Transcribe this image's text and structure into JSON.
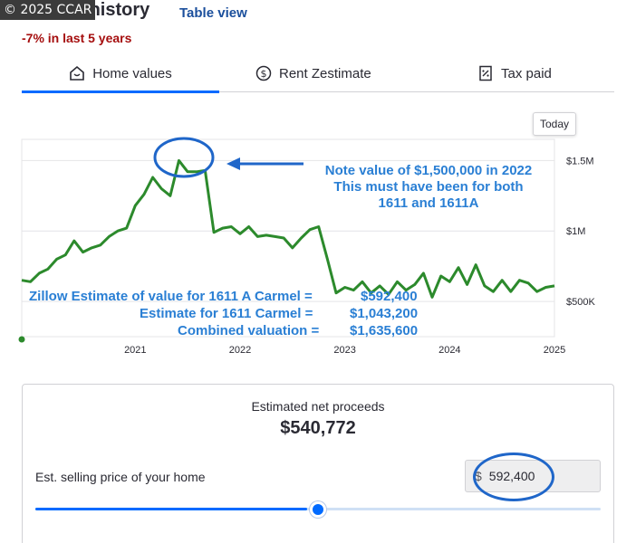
{
  "watermark": "© 2025 CCAR",
  "header": {
    "title": "ate",
    "title_mark": "®",
    "title_tail": " history",
    "table_view": "Table view",
    "change": "-7% in last 5 years"
  },
  "tabs": [
    {
      "label": "Home values",
      "icon": "house-icon",
      "active": true
    },
    {
      "label": "Rent Zestimate",
      "icon": "dollar-circle-icon",
      "active": false
    },
    {
      "label": "Tax paid",
      "icon": "receipt-icon",
      "active": false
    }
  ],
  "today_button": "Today",
  "chart_data": {
    "type": "line",
    "series": [
      {
        "color": "#2c8a2c",
        "points": [
          [
            "2020-06",
            650000
          ],
          [
            "2020-07",
            640000
          ],
          [
            "2020-08",
            700000
          ],
          [
            "2020-09",
            730000
          ],
          [
            "2020-10",
            800000
          ],
          [
            "2020-11",
            830000
          ],
          [
            "2020-12",
            930000
          ],
          [
            "2021-01",
            850000
          ],
          [
            "2021-02",
            880000
          ],
          [
            "2021-03",
            900000
          ],
          [
            "2021-04",
            960000
          ],
          [
            "2021-05",
            1000000
          ],
          [
            "2021-06",
            1020000
          ],
          [
            "2021-07",
            1180000
          ],
          [
            "2021-08",
            1260000
          ],
          [
            "2021-09",
            1380000
          ],
          [
            "2021-10",
            1300000
          ],
          [
            "2021-11",
            1250000
          ],
          [
            "2021-12",
            1500000
          ],
          [
            "2022-01",
            1420000
          ],
          [
            "2022-02",
            1420000
          ],
          [
            "2022-03",
            1430000
          ],
          [
            "2022-04",
            990000
          ],
          [
            "2022-05",
            1020000
          ],
          [
            "2022-06",
            1030000
          ],
          [
            "2022-07",
            980000
          ],
          [
            "2022-08",
            1030000
          ],
          [
            "2022-09",
            960000
          ],
          [
            "2022-10",
            970000
          ],
          [
            "2022-11",
            960000
          ],
          [
            "2022-12",
            950000
          ],
          [
            "2023-01",
            880000
          ],
          [
            "2023-02",
            950000
          ],
          [
            "2023-03",
            1010000
          ],
          [
            "2023-04",
            1030000
          ],
          [
            "2023-05",
            800000
          ],
          [
            "2023-06",
            560000
          ],
          [
            "2023-07",
            600000
          ],
          [
            "2023-08",
            580000
          ],
          [
            "2023-09",
            640000
          ],
          [
            "2023-10",
            560000
          ],
          [
            "2023-11",
            610000
          ],
          [
            "2023-12",
            550000
          ],
          [
            "2024-01",
            640000
          ],
          [
            "2024-02",
            580000
          ],
          [
            "2024-03",
            620000
          ],
          [
            "2024-04",
            700000
          ],
          [
            "2024-05",
            530000
          ],
          [
            "2024-06",
            680000
          ],
          [
            "2024-07",
            640000
          ],
          [
            "2024-08",
            740000
          ],
          [
            "2024-09",
            620000
          ],
          [
            "2024-10",
            760000
          ],
          [
            "2024-11",
            610000
          ],
          [
            "2024-12",
            570000
          ],
          [
            "2025-01",
            650000
          ],
          [
            "2025-02",
            570000
          ],
          [
            "2025-03",
            650000
          ],
          [
            "2025-04",
            630000
          ],
          [
            "2025-05",
            570000
          ],
          [
            "2025-06",
            600000
          ],
          [
            "2025-07",
            610000
          ]
        ]
      }
    ],
    "x_ticks": [
      "2021",
      "2022",
      "2023",
      "2024",
      "2025"
    ],
    "y_ticks": [
      "$1.5M",
      "$1M",
      "$500K"
    ],
    "y_tick_values": [
      1500000,
      1000000,
      500000
    ],
    "ylim": [
      250000,
      1650000
    ],
    "xlim": [
      "2020-06",
      "2025-07"
    ],
    "grid": true
  },
  "annotations": {
    "note_line1": "Note value of $1,500,000 in 2022",
    "note_line2": "This must have been for both",
    "note_line3": "1611 and 1611A",
    "est_line1_label": "Zillow Estimate of value for 1611 A Carmel =",
    "est_line1_value": "$592,400",
    "est_line2_label": "Estimate for 1611 Carmel  =",
    "est_line2_value": "$1,043,200",
    "est_line3_label": "Combined valuation =",
    "est_line3_value": "$1,635,600",
    "markup_color": "#1f66c9"
  },
  "proceeds": {
    "label": "Estimated net proceeds",
    "value": "$540,772",
    "price_label": "Est. selling price of your home",
    "price_currency": "$",
    "price_value": "592,400",
    "slider_fraction": 0.5
  }
}
